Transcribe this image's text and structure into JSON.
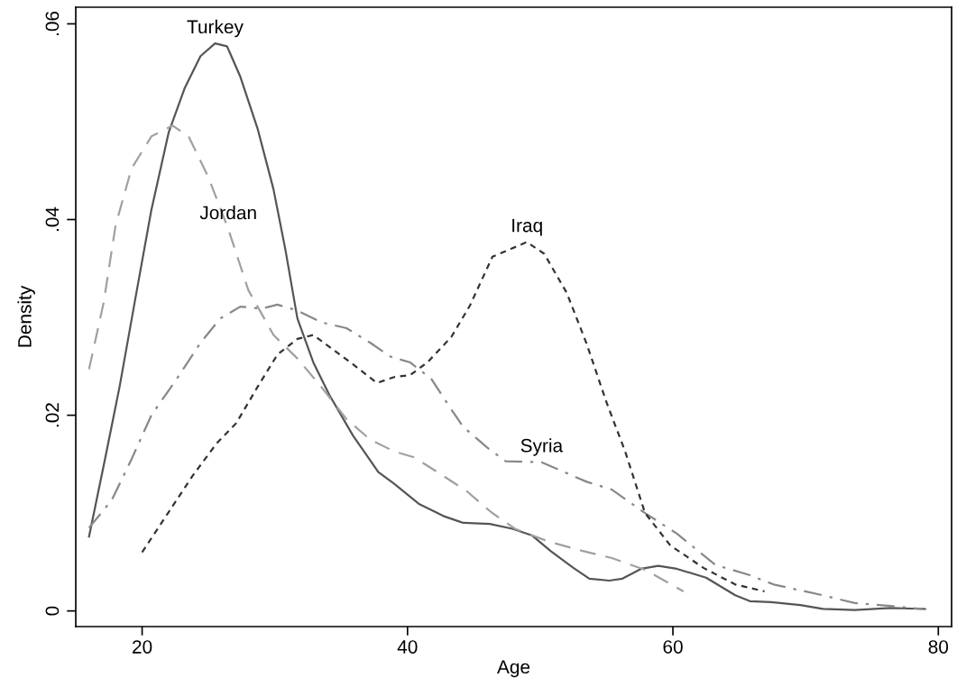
{
  "chart_data": {
    "type": "line",
    "xlabel": "Age",
    "ylabel": "Density",
    "xlim": [
      15,
      81
    ],
    "ylim": [
      -0.0016,
      0.0617
    ],
    "xticks": [
      20,
      40,
      60,
      80
    ],
    "yticks": [
      {
        "value": 0,
        "label": "0"
      },
      {
        "value": 0.02,
        "label": ".02"
      },
      {
        "value": 0.04,
        "label": ".04"
      },
      {
        "value": 0.06,
        "label": ".06"
      }
    ],
    "grid": false,
    "marker": "none",
    "annotations": [
      {
        "text": "Turkey",
        "x": 25.5,
        "y": 0.058
      },
      {
        "text": "Jordan",
        "x": 26.5,
        "y": 0.039
      },
      {
        "text": "Iraq",
        "x": 49.0,
        "y": 0.0377
      },
      {
        "text": "Syria",
        "x": 50.1,
        "y": 0.0152
      }
    ],
    "series": [
      {
        "color": "#555555",
        "line_style": "solid",
        "x": [
          16.0,
          17.2,
          18.3,
          19.5,
          20.7,
          22.0,
          23.2,
          24.4,
          25.5,
          26.4,
          27.4,
          28.7,
          29.9,
          30.8,
          31.7,
          32.9,
          34.1,
          35.9,
          37.8,
          39.0,
          40.9,
          42.7,
          44.2,
          46.2,
          47.9,
          49.4,
          50.8,
          52.5,
          53.7,
          55.2,
          56.2,
          57.6,
          58.9,
          60.3,
          62.5,
          64.7,
          65.8,
          67.4,
          69.6,
          71.3,
          73.7,
          76.4,
          79.0
        ],
        "values": [
          0.0076,
          0.0155,
          0.0229,
          0.032,
          0.041,
          0.0489,
          0.0534,
          0.0567,
          0.058,
          0.0577,
          0.0546,
          0.0493,
          0.0431,
          0.0369,
          0.0299,
          0.0254,
          0.0221,
          0.0179,
          0.0142,
          0.013,
          0.0109,
          0.0097,
          0.009,
          0.0089,
          0.0084,
          0.0077,
          0.0061,
          0.0044,
          0.0033,
          0.0031,
          0.0033,
          0.0043,
          0.0046,
          0.0043,
          0.0034,
          0.0016,
          0.001,
          0.0009,
          0.0006,
          0.0002,
          0.0001,
          0.0003,
          0.0002
        ]
      },
      {
        "color": "#a0a0a0",
        "line_style": "dashed",
        "x": [
          16.0,
          17.1,
          18.0,
          19.2,
          20.7,
          22.3,
          23.5,
          25.0,
          26.5,
          28.0,
          29.9,
          31.7,
          33.5,
          35.4,
          37.2,
          39.0,
          40.5,
          42.7,
          44.5,
          46.3,
          48.1,
          50.6,
          53.0,
          55.4,
          57.9,
          60.8
        ],
        "values": [
          0.0247,
          0.0315,
          0.0394,
          0.0452,
          0.0485,
          0.0496,
          0.0485,
          0.0443,
          0.039,
          0.0328,
          0.0282,
          0.0258,
          0.0229,
          0.0196,
          0.0175,
          0.0163,
          0.0157,
          0.0138,
          0.0122,
          0.0101,
          0.0084,
          0.0071,
          0.0062,
          0.0054,
          0.0042,
          0.002
        ]
      },
      {
        "color": "#888888",
        "line_style": "dashdot",
        "x": [
          16.0,
          17.7,
          19.2,
          20.7,
          22.6,
          24.4,
          25.9,
          27.4,
          29.0,
          30.2,
          31.7,
          33.5,
          35.4,
          37.2,
          38.7,
          40.2,
          41.8,
          43.0,
          44.2,
          46.0,
          47.4,
          50.1,
          53.5,
          55.4,
          57.9,
          60.3,
          63.2,
          65.7,
          67.6,
          71.3,
          73.7,
          76.4,
          78.8
        ],
        "values": [
          0.0085,
          0.0113,
          0.0155,
          0.02,
          0.0237,
          0.0274,
          0.0299,
          0.0311,
          0.0309,
          0.0313,
          0.0307,
          0.0295,
          0.0289,
          0.0274,
          0.026,
          0.0254,
          0.0237,
          0.0212,
          0.0188,
          0.0167,
          0.0153,
          0.0152,
          0.0132,
          0.0124,
          0.01,
          0.0079,
          0.0047,
          0.0037,
          0.0027,
          0.0016,
          0.0008,
          0.0005,
          0.0002
        ]
      },
      {
        "color": "#333333",
        "line_style": "dotted",
        "x": [
          20.0,
          22.0,
          23.8,
          25.6,
          27.1,
          28.7,
          30.2,
          31.7,
          32.9,
          34.1,
          35.7,
          37.7,
          39.0,
          40.2,
          41.5,
          43.3,
          44.7,
          46.4,
          49.0,
          50.3,
          52.0,
          53.5,
          55.0,
          56.4,
          57.9,
          59.8,
          62.3,
          64.7,
          66.9
        ],
        "values": [
          0.006,
          0.0101,
          0.0138,
          0.0171,
          0.0192,
          0.0229,
          0.0262,
          0.0278,
          0.0282,
          0.027,
          0.0254,
          0.0233,
          0.0239,
          0.0241,
          0.0254,
          0.028,
          0.0312,
          0.0362,
          0.0377,
          0.0365,
          0.0325,
          0.0273,
          0.0213,
          0.0163,
          0.01,
          0.0067,
          0.0044,
          0.0027,
          0.002
        ]
      }
    ]
  }
}
